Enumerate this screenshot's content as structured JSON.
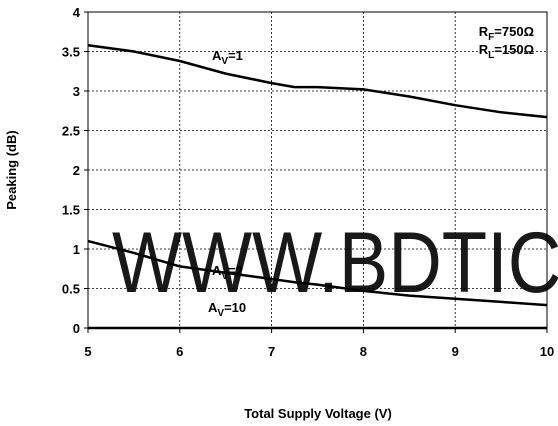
{
  "chart_data": {
    "type": "line",
    "xlabel": "Total Supply Voltage (V)",
    "ylabel": "Peaking (dB)",
    "x": [
      5,
      5.5,
      6,
      6.5,
      7,
      7.25,
      7.5,
      8,
      8.5,
      9,
      9.5,
      10
    ],
    "series": [
      {
        "label": {
          "main": "A",
          "sub": "V",
          "rest": "=1"
        },
        "color": "#000000",
        "values": [
          3.58,
          3.5,
          3.38,
          3.22,
          3.1,
          3.05,
          3.05,
          3.02,
          2.93,
          2.82,
          2.73,
          2.67
        ]
      },
      {
        "label": {
          "main": "A",
          "sub": "V",
          "rest": "=2"
        },
        "color": "#000000",
        "values": [
          1.1,
          0.95,
          0.78,
          0.7,
          0.62,
          0.58,
          0.55,
          0.47,
          0.41,
          0.37,
          0.33,
          0.29
        ]
      },
      {
        "label": {
          "main": "A",
          "sub": "V",
          "rest": "=10"
        },
        "color": "#000000",
        "values": [
          0,
          0,
          0,
          0,
          0,
          0,
          0,
          0,
          0,
          0,
          0,
          0
        ]
      }
    ],
    "annotations": [
      {
        "main": "R",
        "sub": "F",
        "rest": "=750Ω"
      },
      {
        "main": "R",
        "sub": "L",
        "rest": "=150Ω"
      }
    ],
    "watermark": "WWW.BDTIC.",
    "xlim": [
      5,
      10
    ],
    "xticks": [
      5,
      6,
      7,
      8,
      9,
      10
    ],
    "ylim": [
      0,
      4
    ],
    "yticks": [
      0,
      0.5,
      1,
      1.5,
      2,
      2.5,
      3,
      3.5,
      4
    ],
    "grid": true
  }
}
